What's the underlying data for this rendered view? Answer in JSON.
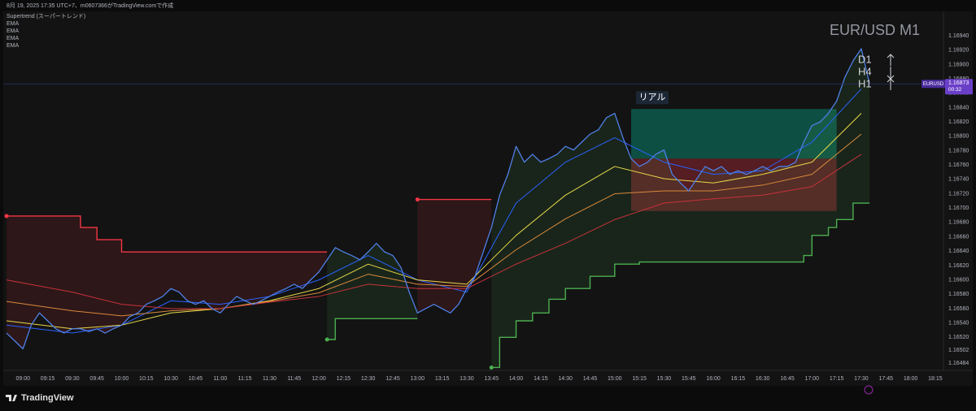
{
  "header": "8月 19, 2025 17:35 UTC+7、m0607366がTradingView.comで作成",
  "footer": "TradingView",
  "chart_data": {
    "type": "line",
    "title": "EUR/USD M1",
    "annotations": [
      "D1",
      "H4",
      "H1"
    ],
    "grid": false,
    "xlim": [
      "08:48",
      "18:20"
    ],
    "ylim": [
      1.16474,
      1.16974
    ],
    "xticks": [
      "09:00",
      "09:15",
      "09:30",
      "09:45",
      "10:00",
      "10:15",
      "10:30",
      "10:45",
      "11:00",
      "11:15",
      "11:30",
      "11:45",
      "12:00",
      "12:15",
      "12:30",
      "12:45",
      "13:00",
      "13:15",
      "13:30",
      "13:45",
      "14:00",
      "14:15",
      "14:30",
      "14:45",
      "15:00",
      "15:15",
      "15:30",
      "15:45",
      "16:00",
      "16:15",
      "16:30",
      "16:45",
      "17:00",
      "17:15",
      "17:30",
      "17:45",
      "18:00",
      "18:15"
    ],
    "yticks": [
      {
        "value": 1.1694,
        "label": "1.16940"
      },
      {
        "value": 1.1692,
        "label": "1.16920"
      },
      {
        "value": 1.169,
        "label": "1.16900"
      },
      {
        "value": 1.1688,
        "label": "1.16880"
      },
      {
        "value": 1.1686,
        "label": "1.16860"
      },
      {
        "value": 1.1684,
        "label": "1.16840"
      },
      {
        "value": 1.1682,
        "label": "1.16820"
      },
      {
        "value": 1.168,
        "label": "1.16800"
      },
      {
        "value": 1.1678,
        "label": "1.16780"
      },
      {
        "value": 1.1676,
        "label": "1.16760"
      },
      {
        "value": 1.1674,
        "label": "1.16740"
      },
      {
        "value": 1.1672,
        "label": "1.16720"
      },
      {
        "value": 1.167,
        "label": "1.16700"
      },
      {
        "value": 1.1668,
        "label": "1.16680"
      },
      {
        "value": 1.1666,
        "label": "1.16660"
      },
      {
        "value": 1.1664,
        "label": "1.16640"
      },
      {
        "value": 1.1662,
        "label": "1.16620"
      },
      {
        "value": 1.166,
        "label": "1.16600"
      },
      {
        "value": 1.1658,
        "label": "1.16580"
      },
      {
        "value": 1.1656,
        "label": "1.16560"
      },
      {
        "value": 1.1654,
        "label": "1.16540"
      },
      {
        "value": 1.1652,
        "label": "1.16520"
      },
      1.16502,
      1.16484
    ],
    "x": [
      "08:50",
      "08:55",
      "09:00",
      "09:05",
      "09:10",
      "09:15",
      "09:20",
      "09:25",
      "09:30",
      "09:35",
      "09:40",
      "09:45",
      "09:50",
      "09:55",
      "10:00",
      "10:05",
      "10:10",
      "10:15",
      "10:20",
      "10:25",
      "10:30",
      "10:35",
      "10:40",
      "10:45",
      "10:50",
      "10:55",
      "11:00",
      "11:05",
      "11:10",
      "11:15",
      "11:20",
      "11:25",
      "11:30",
      "11:35",
      "11:40",
      "11:45",
      "11:50",
      "11:55",
      "12:00",
      "12:05",
      "12:10",
      "12:15",
      "12:20",
      "12:25",
      "12:30",
      "12:35",
      "12:40",
      "12:45",
      "12:50",
      "12:55",
      "13:00",
      "13:05",
      "13:10",
      "13:15",
      "13:20",
      "13:25",
      "13:30",
      "13:35",
      "13:40",
      "13:45",
      "13:50",
      "13:55",
      "14:00",
      "14:05",
      "14:10",
      "14:15",
      "14:20",
      "14:25",
      "14:30",
      "14:35",
      "14:40",
      "14:45",
      "14:50",
      "14:55",
      "15:00",
      "15:05",
      "15:10",
      "15:15",
      "15:20",
      "15:25",
      "15:30",
      "15:35",
      "15:40",
      "15:45",
      "15:50",
      "15:55",
      "16:00",
      "16:05",
      "16:10",
      "16:15",
      "16:20",
      "16:25",
      "16:30",
      "16:35",
      "16:40",
      "16:45",
      "16:50",
      "16:55",
      "17:00",
      "17:05",
      "17:10",
      "17:15",
      "17:20",
      "17:25",
      "17:30",
      "17:35"
    ],
    "series": [
      {
        "name": "EURUSD",
        "color": "#4f7fe6",
        "values": [
          1.16526,
          1.16515,
          1.16504,
          1.16537,
          1.16554,
          1.16543,
          1.16532,
          1.16526,
          1.16532,
          1.16532,
          1.16528,
          1.16532,
          1.16526,
          1.16532,
          1.16537,
          1.16549,
          1.16554,
          1.16566,
          1.16571,
          1.16577,
          1.16588,
          1.16583,
          1.16571,
          1.16566,
          1.16571,
          1.1656,
          1.16554,
          1.16566,
          1.16577,
          1.16571,
          1.16566,
          1.16571,
          1.16577,
          1.16583,
          1.16588,
          1.16594,
          1.16588,
          1.166,
          1.16611,
          1.16628,
          1.16645,
          1.16639,
          1.16634,
          1.16628,
          1.16639,
          1.16651,
          1.16639,
          1.16634,
          1.16617,
          1.16583,
          1.16554,
          1.1656,
          1.16566,
          1.1656,
          1.16554,
          1.16566,
          1.16588,
          1.16605,
          1.16639,
          1.16673,
          1.16718,
          1.16747,
          1.16786,
          1.16764,
          1.16775,
          1.16764,
          1.16769,
          1.16775,
          1.16786,
          1.16781,
          1.16792,
          1.16803,
          1.16809,
          1.16826,
          1.16832,
          1.16798,
          1.16769,
          1.16758,
          1.16764,
          1.16775,
          1.16781,
          1.16747,
          1.16735,
          1.16724,
          1.16741,
          1.16758,
          1.16752,
          1.16758,
          1.16747,
          1.16752,
          1.16747,
          1.16752,
          1.16758,
          1.16752,
          1.16758,
          1.16758,
          1.16764,
          1.16792,
          1.16815,
          1.1682,
          1.16832,
          1.16849,
          1.16882,
          1.16905,
          1.16922,
          1.16873
        ]
      }
    ],
    "last_price": {
      "value": 1.16873,
      "countdown": "00:32",
      "color": "#6a3fc8"
    },
    "supertrend": {
      "name": "Supertrend (スーパートレンド)",
      "segments": [
        {
          "color": "#f23645",
          "x": [
            "08:50",
            "09:35",
            "09:45",
            "10:00",
            "12:05"
          ],
          "values": [
            1.16689,
            1.16673,
            1.16656,
            1.16639,
            1.16639
          ]
        },
        {
          "color": "#4caf50",
          "x": [
            "12:05",
            "12:10",
            "13:00"
          ],
          "values": [
            1.16517,
            1.16546,
            1.16546
          ]
        },
        {
          "color": "#f23645",
          "x": [
            "13:00",
            "13:45"
          ],
          "values": [
            1.16712,
            1.16712
          ]
        },
        {
          "color": "#4caf50",
          "x": [
            "13:45",
            "13:50",
            "14:00",
            "14:10",
            "14:20",
            "14:30",
            "14:45",
            "15:00",
            "15:15",
            "16:55",
            "17:00",
            "17:10",
            "17:15",
            "17:25",
            "17:35"
          ],
          "values": [
            1.16478,
            1.1652,
            1.16543,
            1.16554,
            1.16573,
            1.16588,
            1.16605,
            1.16622,
            1.16625,
            1.16634,
            1.16662,
            1.16673,
            1.16684,
            1.16707,
            1.16707
          ]
        }
      ]
    },
    "ema": {
      "x": [
        "08:50",
        "09:30",
        "10:00",
        "10:30",
        "11:00",
        "11:30",
        "12:00",
        "12:30",
        "13:00",
        "13:30",
        "14:00",
        "14:30",
        "15:00",
        "15:30",
        "16:00",
        "16:30",
        "17:00",
        "17:30"
      ],
      "series": [
        {
          "name": "EMA",
          "color": "#2962ff",
          "values": [
            1.16537,
            1.16526,
            1.16537,
            1.16571,
            1.16566,
            1.16577,
            1.166,
            1.16634,
            1.166,
            1.16583,
            1.16707,
            1.16764,
            1.16798,
            1.16764,
            1.16747,
            1.16752,
            1.16792,
            1.16866
          ]
        },
        {
          "name": "EMA",
          "color": "#e6d84a",
          "values": [
            1.16543,
            1.16532,
            1.16537,
            1.16554,
            1.1656,
            1.16571,
            1.16588,
            1.16622,
            1.166,
            1.16594,
            1.16662,
            1.16718,
            1.16758,
            1.16741,
            1.16735,
            1.16747,
            1.16764,
            1.16832
          ]
        },
        {
          "name": "EMA",
          "color": "#d98a3c",
          "values": [
            1.1657,
            1.16557,
            1.1655,
            1.16557,
            1.1656,
            1.1657,
            1.16582,
            1.16608,
            1.16594,
            1.16591,
            1.16642,
            1.16685,
            1.1672,
            1.16724,
            1.16724,
            1.16732,
            1.16747,
            1.16803
          ]
        },
        {
          "name": "EMA",
          "color": "#c8323c",
          "values": [
            1.166,
            1.16583,
            1.16566,
            1.1656,
            1.1656,
            1.16569,
            1.16577,
            1.16594,
            1.16588,
            1.16588,
            1.16622,
            1.16651,
            1.16684,
            1.16707,
            1.16713,
            1.16718,
            1.1673,
            1.16775
          ]
        }
      ]
    },
    "position": {
      "label": "リアル",
      "x": [
        "15:10",
        "17:15"
      ],
      "target": 1.16838,
      "entry": 1.16769,
      "stop": 1.16696
    }
  }
}
